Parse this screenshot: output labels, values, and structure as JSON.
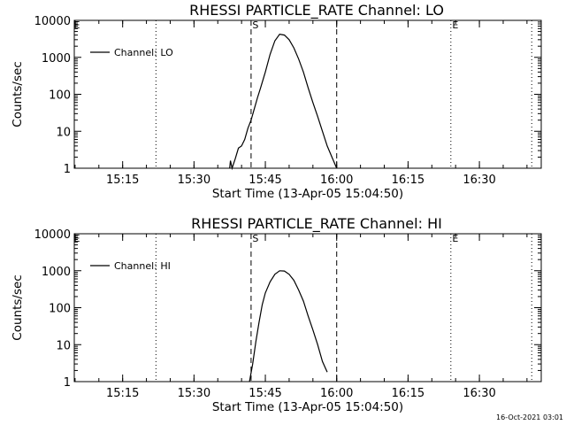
{
  "footer_timestamp": "16-Oct-2021 03:01",
  "chart_data": [
    {
      "type": "line",
      "title": "RHESSI PARTICLE_RATE Channel: LO",
      "xlabel": "Start Time (13-Apr-05 15:04:50)",
      "ylabel": "Counts/sec",
      "yscale": "log",
      "ylim": [
        1,
        10000
      ],
      "xlim": [
        "15:04:50",
        "16:43:00"
      ],
      "x_tick_labels": [
        "15:15",
        "15:30",
        "15:45",
        "16:00",
        "16:15",
        "16:30"
      ],
      "y_tick_labels": [
        "1",
        "10",
        "100",
        "1000",
        "10000"
      ],
      "legend": "Channel: LO",
      "legend_position": "top-left",
      "markers": [
        {
          "time": "15:22:00",
          "style": "dotted",
          "label": ""
        },
        {
          "time": "15:42:00",
          "style": "dashed",
          "label": "S"
        },
        {
          "time": "16:00:00",
          "style": "dashed",
          "label": ""
        },
        {
          "time": "16:24:00",
          "style": "dotted",
          "label": "E"
        },
        {
          "time": "16:41:00",
          "style": "dotted",
          "label": ""
        }
      ],
      "series": [
        {
          "name": "Channel: LO",
          "x": [
            "15:37:30",
            "15:37:40",
            "15:38:00",
            "15:38:40",
            "15:39:20",
            "15:40:00",
            "15:40:40",
            "15:41:20",
            "15:42:00",
            "15:42:40",
            "15:43:20",
            "15:44:00",
            "15:45:00",
            "15:46:00",
            "15:47:00",
            "15:48:00",
            "15:49:00",
            "15:50:00",
            "15:51:00",
            "15:52:00",
            "15:53:00",
            "15:54:00",
            "15:55:00",
            "15:56:00",
            "15:57:00",
            "15:58:00",
            "15:59:00",
            "16:00:00"
          ],
          "y": [
            1,
            1.6,
            1,
            1.8,
            3.5,
            4,
            6,
            12,
            20,
            40,
            80,
            150,
            400,
            1200,
            2800,
            4200,
            4000,
            3000,
            1800,
            900,
            400,
            150,
            60,
            25,
            10,
            4,
            2,
            1
          ]
        }
      ]
    },
    {
      "type": "line",
      "title": "RHESSI PARTICLE_RATE Channel: HI",
      "xlabel": "Start Time (13-Apr-05 15:04:50)",
      "ylabel": "Counts/sec",
      "yscale": "log",
      "ylim": [
        1,
        10000
      ],
      "xlim": [
        "15:04:50",
        "16:43:00"
      ],
      "x_tick_labels": [
        "15:15",
        "15:30",
        "15:45",
        "16:00",
        "16:15",
        "16:30"
      ],
      "y_tick_labels": [
        "1",
        "10",
        "100",
        "1000",
        "10000"
      ],
      "legend": "Channel: HI",
      "legend_position": "top-left",
      "markers": [
        {
          "time": "15:42:00",
          "style": "dashed",
          "label": "S"
        },
        {
          "time": "15:22:00",
          "style": "dotted",
          "label": ""
        },
        {
          "time": "16:00:00",
          "style": "dashed",
          "label": ""
        },
        {
          "time": "16:24:00",
          "style": "dotted",
          "label": "E"
        },
        {
          "time": "16:41:00",
          "style": "dotted",
          "label": ""
        }
      ],
      "series": [
        {
          "name": "Channel: HI",
          "x": [
            "15:41:40",
            "15:42:20",
            "15:43:00",
            "15:43:40",
            "15:44:20",
            "15:45:00",
            "15:46:00",
            "15:47:00",
            "15:48:00",
            "15:49:00",
            "15:50:00",
            "15:51:00",
            "15:52:00",
            "15:53:00",
            "15:54:00",
            "15:55:00",
            "15:56:00",
            "15:57:00",
            "15:58:00"
          ],
          "y": [
            1,
            3,
            12,
            40,
            120,
            250,
            500,
            800,
            1000,
            980,
            800,
            550,
            300,
            150,
            60,
            25,
            10,
            3.5,
            1.8
          ]
        }
      ]
    }
  ]
}
